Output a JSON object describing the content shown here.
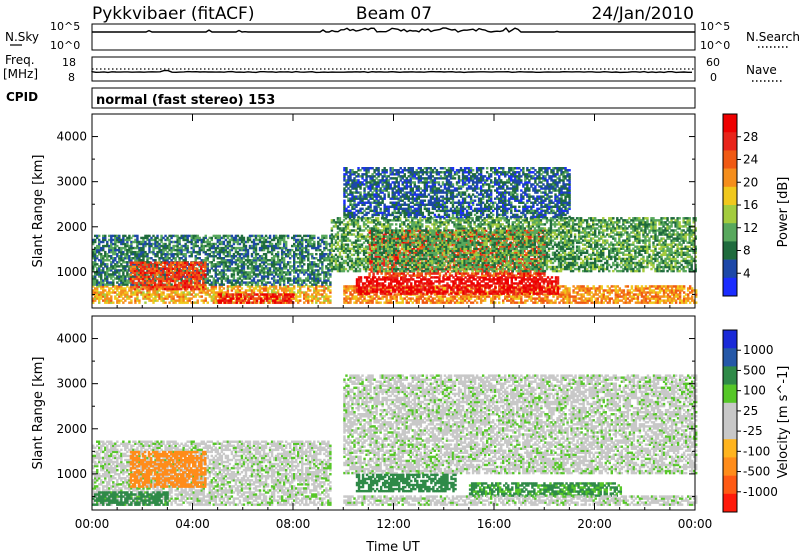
{
  "header": {
    "station": "Pykkvibaer (fitACF)",
    "beam": "Beam 07",
    "date": "24/Jan/2010"
  },
  "sky_panel": {
    "left_label": "N.Sky",
    "right_label": "N.Search",
    "left_ticks": [
      "10^5",
      "10^0"
    ],
    "right_ticks": [
      "10^5",
      "10^0"
    ]
  },
  "freq_panel": {
    "left_label_1": "Freq.",
    "left_label_2": "[MHz]",
    "right_label": "Nave",
    "left_ticks": [
      "18",
      "8"
    ],
    "right_ticks": [
      "60",
      "0"
    ]
  },
  "cpid_panel": {
    "label": "CPID",
    "mode_text": "normal (fast stereo) 153"
  },
  "colors": {
    "power": [
      "#1b2dff",
      "#1d48a8",
      "#1f6b3d",
      "#58a85d",
      "#a3cc3e",
      "#f0c81d",
      "#f58e1c",
      "#f05a14",
      "#e8241a",
      "#ee0000"
    ],
    "velocity": [
      "#ff1a0a",
      "#ff5a14",
      "#ff8c1a",
      "#ffb41e",
      "#c8c8c8",
      "#c8c8c8",
      "#56c728",
      "#2f8a48",
      "#2558a8",
      "#1a2ad8"
    ],
    "axis": "#000000"
  },
  "chart_data": [
    {
      "type": "heatmap",
      "title": "",
      "xlabel": "",
      "ylabel": "Slant Range [km]",
      "x_range": [
        "00:00",
        "24:00"
      ],
      "xlim": [
        0,
        24
      ],
      "ylim": [
        200,
        4500
      ],
      "y_ticks": [
        "1000",
        "2000",
        "3000",
        "4000"
      ],
      "x_ticks": [
        "00:00",
        "04:00",
        "08:00",
        "12:00",
        "16:00",
        "20:00",
        "00:00"
      ],
      "colorbar": {
        "label": "Power [dB]",
        "ticks": [
          "4",
          "8",
          "12",
          "16",
          "20",
          "24",
          "28"
        ],
        "range": [
          0,
          30
        ]
      },
      "regions": [
        {
          "t": [
            0.0,
            9.5
          ],
          "r": [
            300,
            700
          ],
          "value": 18
        },
        {
          "t": [
            0.0,
            9.5
          ],
          "r": [
            700,
            1800
          ],
          "value": 8
        },
        {
          "t": [
            1.5,
            4.5
          ],
          "r": [
            600,
            1200
          ],
          "value": 24
        },
        {
          "t": [
            5.0,
            8.0
          ],
          "r": [
            300,
            500
          ],
          "value": 26
        },
        {
          "t": [
            10.0,
            24.0
          ],
          "r": [
            300,
            700
          ],
          "value": 20
        },
        {
          "t": [
            10.5,
            18.5
          ],
          "r": [
            500,
            900
          ],
          "value": 28
        },
        {
          "t": [
            11.0,
            18.0
          ],
          "r": [
            900,
            1900
          ],
          "value": 24
        },
        {
          "t": [
            9.5,
            24.0
          ],
          "r": [
            1000,
            2200
          ],
          "value": 10
        },
        {
          "t": [
            10.0,
            19.0
          ],
          "r": [
            2200,
            3300
          ],
          "value": 6
        }
      ]
    },
    {
      "type": "heatmap",
      "title": "",
      "xlabel": "Time UT",
      "ylabel": "Slant Range [km]",
      "x_range": [
        "00:00",
        "24:00"
      ],
      "xlim": [
        0,
        24
      ],
      "ylim": [
        200,
        4500
      ],
      "y_ticks": [
        "1000",
        "2000",
        "3000",
        "4000"
      ],
      "x_ticks": [
        "00:00",
        "04:00",
        "08:00",
        "12:00",
        "16:00",
        "20:00",
        "00:00"
      ],
      "colorbar": {
        "label": "Velocity [m s^-1]",
        "ticks": [
          "1000",
          "500",
          "100",
          "25",
          "-25",
          "-100",
          "-500",
          "-1000"
        ],
        "range": [
          -1000,
          1000
        ]
      },
      "regions": [
        {
          "t": [
            0.0,
            9.5
          ],
          "r": [
            300,
            1700
          ],
          "value": 0
        },
        {
          "t": [
            1.5,
            4.5
          ],
          "r": [
            700,
            1500
          ],
          "value": -300
        },
        {
          "t": [
            0.0,
            3.0
          ],
          "r": [
            300,
            600
          ],
          "value": 150
        },
        {
          "t": [
            10.0,
            24.0
          ],
          "r": [
            1000,
            3200
          ],
          "value": 0
        },
        {
          "t": [
            10.5,
            14.5
          ],
          "r": [
            600,
            1000
          ],
          "value": 200
        },
        {
          "t": [
            15.0,
            21.0
          ],
          "r": [
            500,
            800
          ],
          "value": 120
        },
        {
          "t": [
            10.0,
            24.0
          ],
          "r": [
            300,
            500
          ],
          "value": 0
        }
      ]
    }
  ]
}
